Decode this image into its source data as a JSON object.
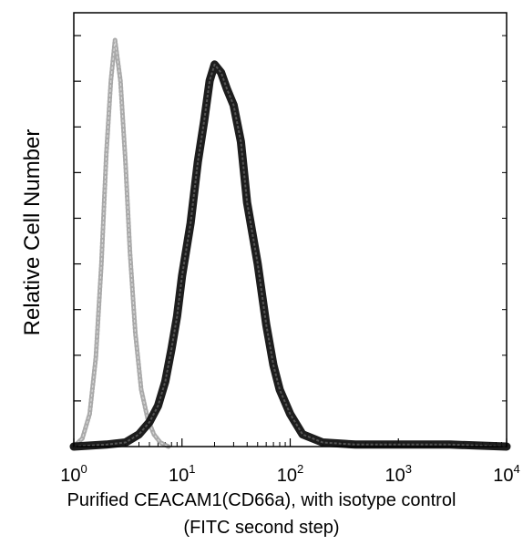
{
  "chart_data": {
    "type": "line",
    "title": "",
    "xlabel": "Purified CEACAM1(CD66a), with isotype control",
    "xlabel_line2": "(FITC second step)",
    "ylabel": "Relative Cell Number",
    "xscale": "log",
    "xlim": [
      1,
      10000
    ],
    "x_ticks": [
      {
        "base": "10",
        "exp": "0"
      },
      {
        "base": "10",
        "exp": "1"
      },
      {
        "base": "10",
        "exp": "2"
      },
      {
        "base": "10",
        "exp": "3"
      },
      {
        "base": "10",
        "exp": "4"
      }
    ],
    "ylim": [
      0,
      100
    ],
    "grid": false,
    "legend": "none",
    "series": [
      {
        "style": "light-gray dotted",
        "color": "#9a9a9a",
        "x": [
          1.0,
          1.2,
          1.4,
          1.6,
          1.8,
          2.0,
          2.2,
          2.4,
          2.7,
          3.0,
          3.3,
          3.7,
          4.2,
          4.8,
          5.5,
          6.3,
          7.5
        ],
        "y": [
          0,
          2,
          8,
          22,
          45,
          72,
          90,
          100,
          90,
          70,
          48,
          28,
          14,
          7,
          3,
          1,
          0
        ]
      },
      {
        "style": "black",
        "color": "#111111",
        "x": [
          1.0,
          2.0,
          3.0,
          4.0,
          5.0,
          6.0,
          7.0,
          8.0,
          9.0,
          10.0,
          12.0,
          14.0,
          16.0,
          18.0,
          20.0,
          23.0,
          26.0,
          30.0,
          35.0,
          40.0,
          50.0,
          60.0,
          70.0,
          80.0,
          100.0,
          130.0,
          200.0,
          400.0,
          1000.0,
          3000.0,
          10000.0
        ],
        "y": [
          0,
          0.5,
          1,
          3,
          6,
          10,
          16,
          24,
          32,
          42,
          55,
          70,
          80,
          90,
          94,
          92,
          88,
          84,
          75,
          60,
          45,
          30,
          20,
          14,
          8,
          3,
          1,
          0.5,
          0.5,
          0.5,
          0
        ]
      }
    ]
  }
}
